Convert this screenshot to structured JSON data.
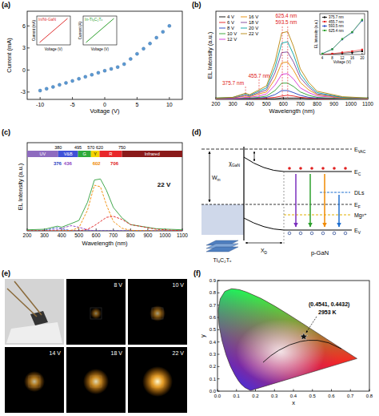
{
  "panel_labels": [
    "(a)",
    "(b)",
    "(c)",
    "(d)",
    "(e)",
    "(f)"
  ],
  "chart_data": [
    {
      "type": "scatter",
      "x_label": "Voltage (V)",
      "y_label": "Current (mA)",
      "x": [
        -10,
        -9,
        -8,
        -7,
        -6,
        -5,
        -4,
        -3,
        -2,
        -1,
        0,
        1,
        2,
        3,
        4,
        5,
        6,
        7,
        8,
        9,
        10
      ],
      "values": [
        -2.8,
        -2.55,
        -2.3,
        -2.02,
        -1.75,
        -1.48,
        -1.2,
        -0.93,
        -0.65,
        -0.38,
        -0.1,
        0.15,
        0.4,
        0.8,
        1.5,
        2.2,
        2.9,
        3.6,
        4.4,
        5.2,
        6.0
      ],
      "color": "#5b9bd5",
      "marker": "circle",
      "xlim": [
        -12,
        12
      ],
      "xticks": [
        -10,
        -5,
        0,
        5,
        10
      ],
      "ylim": [
        -4,
        8
      ],
      "yticks": [
        -3,
        0,
        3,
        6
      ]
    },
    {
      "type": "line",
      "title": "In/Ni-GaN",
      "x_label": "Voltage (V)",
      "y_label": "Current (mA)",
      "x": [
        -1,
        0,
        1
      ],
      "values": [
        -1,
        0,
        1
      ],
      "color": "#e03030",
      "xlim": [
        -1.2,
        1.2
      ],
      "ylim": [
        -1.2,
        1.2
      ],
      "tick_labels": false
    },
    {
      "type": "line",
      "title": "In-Ti₃C₂Tₓ",
      "x_label": "Voltage (V)",
      "y_label": "Current (A)",
      "x": [
        -1,
        0,
        1
      ],
      "values": [
        -1,
        0,
        1
      ],
      "color": "#2ca02c",
      "xlim": [
        -1.2,
        1.2
      ],
      "ylim": [
        -1.2,
        1.2
      ],
      "tick_labels": false
    },
    {
      "type": "line",
      "x_label": "Wavelength (nm)",
      "y_label": "EL Intensity (a.u.)",
      "x": [
        200,
        300,
        375,
        400,
        455,
        500,
        550,
        590,
        625,
        660,
        700,
        750,
        800,
        950,
        1100
      ],
      "series": [
        {
          "name": "4 V",
          "color": "#000000",
          "values": [
            0.01,
            0.01,
            0.01,
            0.01,
            0.01,
            0.01,
            0.01,
            0.02,
            0.02,
            0.02,
            0.02,
            0.01,
            0.01,
            0.01,
            0.01
          ]
        },
        {
          "name": "6 V",
          "color": "#e41a1c",
          "values": [
            0.01,
            0.01,
            0.01,
            0.01,
            0.01,
            0.02,
            0.03,
            0.05,
            0.06,
            0.05,
            0.03,
            0.02,
            0.01,
            0.01,
            0.01
          ]
        },
        {
          "name": "8 V",
          "color": "#1f3fbf",
          "values": [
            0.01,
            0.01,
            0.01,
            0.01,
            0.02,
            0.03,
            0.07,
            0.13,
            0.13,
            0.1,
            0.06,
            0.03,
            0.02,
            0.01,
            0.01
          ]
        },
        {
          "name": "10 V",
          "color": "#2ca02c",
          "values": [
            0.01,
            0.01,
            0.02,
            0.02,
            0.03,
            0.05,
            0.13,
            0.24,
            0.24,
            0.19,
            0.11,
            0.06,
            0.03,
            0.01,
            0.01
          ]
        },
        {
          "name": "12 V",
          "color": "#d62fd6",
          "values": [
            0.01,
            0.01,
            0.03,
            0.03,
            0.05,
            0.08,
            0.21,
            0.37,
            0.38,
            0.3,
            0.17,
            0.1,
            0.05,
            0.02,
            0.01
          ]
        },
        {
          "name": "16 V",
          "color": "#e68a00",
          "values": [
            0.01,
            0.02,
            0.05,
            0.04,
            0.08,
            0.11,
            0.3,
            0.54,
            0.55,
            0.43,
            0.25,
            0.14,
            0.07,
            0.02,
            0.01
          ]
        },
        {
          "name": "18 V",
          "color": "#7b3f99",
          "values": [
            0.01,
            0.02,
            0.06,
            0.05,
            0.1,
            0.14,
            0.39,
            0.69,
            0.7,
            0.55,
            0.32,
            0.18,
            0.08,
            0.03,
            0.01
          ]
        },
        {
          "name": "20 V",
          "color": "#00a0a0",
          "values": [
            0.02,
            0.03,
            0.08,
            0.06,
            0.12,
            0.17,
            0.47,
            0.83,
            0.85,
            0.66,
            0.38,
            0.21,
            0.1,
            0.03,
            0.02
          ]
        },
        {
          "name": "22 V",
          "color": "#b8860b",
          "values": [
            0.02,
            0.03,
            0.09,
            0.07,
            0.14,
            0.2,
            0.55,
            0.98,
            1.0,
            0.78,
            0.45,
            0.25,
            0.12,
            0.04,
            0.02
          ]
        }
      ],
      "xlim": [
        200,
        1100
      ],
      "xticks": [
        200,
        300,
        400,
        500,
        600,
        700,
        800,
        900,
        1000,
        1100
      ],
      "ylim": [
        0,
        1.3
      ],
      "tick_labels": "x",
      "legend": "upper left",
      "annotations": [
        {
          "x": 375.7,
          "label": "375.7 nm"
        },
        {
          "x": 455.7,
          "label": "455.7 nm"
        },
        {
          "x": 593.5,
          "label": "593.5 nm"
        },
        {
          "x": 625.4,
          "label": "625.4 nm"
        }
      ]
    },
    {
      "type": "line",
      "x_label": "Voltage (V)",
      "y_label": "EL Intensity (a.u.)",
      "x": [
        4,
        8,
        12,
        16,
        20
      ],
      "series": [
        {
          "name": "375.7 nm",
          "color": "#000000",
          "values": [
            0.0,
            0.01,
            0.03,
            0.05,
            0.08
          ]
        },
        {
          "name": "455.7 nm",
          "color": "#e41a1c",
          "values": [
            0.0,
            0.02,
            0.05,
            0.08,
            0.12
          ]
        },
        {
          "name": "593.5 nm",
          "color": "#1f3fbf",
          "values": [
            0.02,
            0.13,
            0.37,
            0.54,
            0.83
          ]
        },
        {
          "name": "625.4 nm",
          "color": "#2ca02c",
          "values": [
            0.02,
            0.13,
            0.38,
            0.55,
            0.85
          ]
        }
      ],
      "marker": "square",
      "xlim": [
        3,
        21
      ],
      "xticks": [
        4,
        8,
        12,
        16,
        20
      ],
      "ylim": [
        0,
        1
      ],
      "tick_labels": "x",
      "legend": "upper left"
    },
    {
      "type": "line",
      "x_label": "Wavelength (nm)",
      "y_label": "EL Intensity (a.u.)",
      "x": [
        200,
        300,
        375,
        400,
        455,
        500,
        550,
        590,
        625,
        660,
        700,
        750,
        800,
        950,
        1100
      ],
      "series": [
        {
          "color": "#2e9e3a",
          "values": [
            0.02,
            0.03,
            0.09,
            0.07,
            0.14,
            0.2,
            0.55,
            0.98,
            1.0,
            0.78,
            0.45,
            0.25,
            0.12,
            0.04,
            0.02
          ]
        },
        {
          "color": "#1f3fbf",
          "line_style": "dashed",
          "values": [
            0,
            0.01,
            0.06,
            0.04,
            0,
            0,
            0,
            0,
            0,
            0,
            0,
            0,
            0,
            0,
            0
          ]
        },
        {
          "color": "#8e3fbf",
          "line_style": "dashed",
          "values": [
            0,
            0,
            0.02,
            0.05,
            0.1,
            0.07,
            0.02,
            0,
            0,
            0,
            0,
            0,
            0,
            0,
            0
          ]
        },
        {
          "color": "#f08a00",
          "line_style": "dashed",
          "values": [
            0,
            0,
            0,
            0,
            0.01,
            0.06,
            0.4,
            0.88,
            0.85,
            0.5,
            0.18,
            0.05,
            0.01,
            0,
            0
          ]
        },
        {
          "color": "#e02020",
          "line_style": "dashed",
          "values": [
            0,
            0,
            0,
            0,
            0,
            0,
            0.03,
            0.1,
            0.18,
            0.26,
            0.28,
            0.22,
            0.12,
            0.03,
            0
          ]
        }
      ],
      "xlim": [
        200,
        1100
      ],
      "xticks": [
        200,
        300,
        400,
        500,
        600,
        700,
        800,
        900,
        1000,
        1100
      ],
      "ylim": [
        0,
        1.7
      ],
      "tick_labels": "x",
      "bands": {
        "names": [
          "UV",
          "V&B",
          "G",
          "Y",
          "R",
          "Infrared"
        ],
        "edges": [
          380,
          495,
          570,
          620,
          750
        ],
        "colors": [
          "#8e6bbf",
          "#3f51d8",
          "#2eaa3a",
          "#f4d400",
          "#e8262a",
          "#8a1a1a"
        ]
      },
      "peak_labels": [
        376,
        436,
        602,
        706
      ],
      "annotations": [
        {
          "label": "22 V"
        }
      ]
    },
    {
      "type": "scatter",
      "x_label": "x",
      "y_label": "y",
      "x": [
        0.4541
      ],
      "values": [
        0.4432
      ],
      "color": "#111111",
      "marker": "star",
      "xlim": [
        0,
        0.8
      ],
      "xticks": [
        {
          "value": 0,
          "label": "0.0"
        },
        0.1,
        0.2,
        0.3,
        0.4,
        0.5,
        0.6,
        0.7,
        0.8
      ],
      "ylim": [
        0,
        0.9
      ],
      "yticks": [
        {
          "value": 0,
          "label": "0.0"
        },
        0.1,
        0.2,
        0.3,
        0.4,
        0.5,
        0.6,
        0.7,
        0.8,
        0.9
      ],
      "annotations": [
        {
          "label": "(0.4541, 0.4432)"
        },
        {
          "label": "2953 K"
        }
      ],
      "spectral_locus": {
        "x": [
          0.1741,
          0.144,
          0.1241,
          0.1096,
          0.0913,
          0.0687,
          0.0454,
          0.0235,
          0.0082,
          0.0039,
          0.0139,
          0.0389,
          0.0743,
          0.1142,
          0.1547,
          0.2296,
          0.3016,
          0.3731,
          0.4441,
          0.5125,
          0.5752,
          0.627,
          0.6915,
          0.719,
          0.7347
        ],
        "y": [
          0.005,
          0.0297,
          0.0578,
          0.0868,
          0.1327,
          0.2007,
          0.295,
          0.4127,
          0.5384,
          0.6548,
          0.7502,
          0.812,
          0.8338,
          0.8262,
          0.8059,
          0.7543,
          0.6923,
          0.6245,
          0.5547,
          0.4866,
          0.4242,
          0.3725,
          0.3083,
          0.2809,
          0.2653
        ]
      },
      "planckian_locus": {
        "x": [
          0.6528,
          0.5857,
          0.5267,
          0.477,
          0.4369,
          0.3805,
          0.3221,
          0.2807,
          0.2399
        ],
        "y": [
          0.3444,
          0.3931,
          0.4133,
          0.4137,
          0.4041,
          0.3768,
          0.3318,
          0.2884,
          0.2342
        ]
      }
    }
  ],
  "band_diagram": {
    "vacuum": {
      "text": "E",
      "sub": "VAC"
    },
    "conduction": {
      "text": "E",
      "sub": "C"
    },
    "fermi": {
      "text": "E",
      "sub": "F"
    },
    "valence": {
      "text": "E",
      "sub": "V"
    },
    "acceptor": "Mg²⁺",
    "work_function": {
      "text": "W",
      "sub": "m"
    },
    "affinity": {
      "text": "χ",
      "sub": "GaN"
    },
    "depletion": {
      "text": "X",
      "sub": "D"
    },
    "defects": "DLs",
    "metal": "Ti₃C₂Tₓ",
    "semiconductor": "p-GaN"
  },
  "photos": {
    "labels": [
      "8 V",
      "10 V",
      "14 V",
      "18 V",
      "22 V"
    ]
  }
}
